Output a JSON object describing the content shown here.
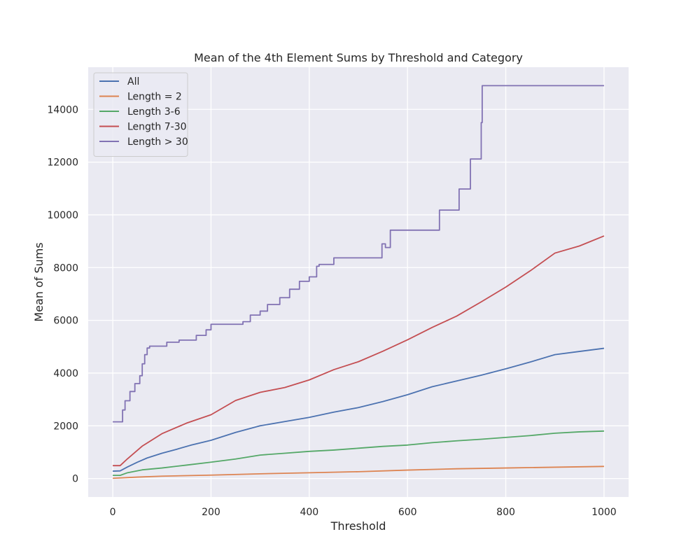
{
  "chart_data": {
    "type": "line",
    "title": "Mean of the 4th Element Sums by Threshold and Category",
    "xlabel": "Threshold",
    "ylabel": "Mean of Sums",
    "xlim": [
      -50,
      1050
    ],
    "ylim": [
      -700,
      15600
    ],
    "xticks": [
      0,
      200,
      400,
      600,
      800,
      1000
    ],
    "yticks": [
      0,
      2000,
      4000,
      6000,
      8000,
      10000,
      12000,
      14000
    ],
    "grid": true,
    "legend_position": "top-left",
    "series": [
      {
        "name": "All",
        "color": "#4c72b0",
        "step": false,
        "points": [
          [
            0,
            280
          ],
          [
            15,
            290
          ],
          [
            30,
            440
          ],
          [
            50,
            620
          ],
          [
            70,
            780
          ],
          [
            100,
            960
          ],
          [
            130,
            1110
          ],
          [
            160,
            1270
          ],
          [
            200,
            1450
          ],
          [
            250,
            1750
          ],
          [
            300,
            2000
          ],
          [
            350,
            2160
          ],
          [
            400,
            2320
          ],
          [
            450,
            2520
          ],
          [
            500,
            2690
          ],
          [
            550,
            2920
          ],
          [
            600,
            3180
          ],
          [
            650,
            3480
          ],
          [
            700,
            3700
          ],
          [
            750,
            3920
          ],
          [
            800,
            4160
          ],
          [
            850,
            4420
          ],
          [
            900,
            4700
          ],
          [
            950,
            4820
          ],
          [
            1000,
            4940
          ]
        ]
      },
      {
        "name": "Length = 2",
        "color": "#dd8452",
        "step": false,
        "points": [
          [
            0,
            10
          ],
          [
            50,
            55
          ],
          [
            100,
            90
          ],
          [
            200,
            130
          ],
          [
            300,
            180
          ],
          [
            400,
            220
          ],
          [
            500,
            260
          ],
          [
            600,
            320
          ],
          [
            700,
            370
          ],
          [
            800,
            400
          ],
          [
            900,
            430
          ],
          [
            1000,
            460
          ]
        ]
      },
      {
        "name": "Length 3-6",
        "color": "#55a868",
        "step": false,
        "points": [
          [
            0,
            120
          ],
          [
            15,
            120
          ],
          [
            30,
            220
          ],
          [
            60,
            330
          ],
          [
            100,
            400
          ],
          [
            150,
            510
          ],
          [
            200,
            620
          ],
          [
            250,
            740
          ],
          [
            300,
            890
          ],
          [
            350,
            960
          ],
          [
            400,
            1030
          ],
          [
            450,
            1080
          ],
          [
            500,
            1150
          ],
          [
            550,
            1220
          ],
          [
            600,
            1270
          ],
          [
            650,
            1360
          ],
          [
            700,
            1430
          ],
          [
            750,
            1490
          ],
          [
            800,
            1560
          ],
          [
            850,
            1630
          ],
          [
            900,
            1720
          ],
          [
            950,
            1770
          ],
          [
            1000,
            1800
          ]
        ]
      },
      {
        "name": "Length 7-30",
        "color": "#c44e52",
        "step": false,
        "points": [
          [
            0,
            490
          ],
          [
            15,
            490
          ],
          [
            30,
            750
          ],
          [
            60,
            1230
          ],
          [
            100,
            1700
          ],
          [
            150,
            2100
          ],
          [
            200,
            2420
          ],
          [
            250,
            2960
          ],
          [
            300,
            3270
          ],
          [
            350,
            3450
          ],
          [
            400,
            3740
          ],
          [
            450,
            4130
          ],
          [
            500,
            4430
          ],
          [
            550,
            4830
          ],
          [
            600,
            5260
          ],
          [
            650,
            5730
          ],
          [
            700,
            6160
          ],
          [
            750,
            6700
          ],
          [
            800,
            7260
          ],
          [
            850,
            7880
          ],
          [
            900,
            8550
          ],
          [
            950,
            8820
          ],
          [
            1000,
            9200
          ]
        ]
      },
      {
        "name": "Length > 30",
        "color": "#8172b3",
        "step": true,
        "points": [
          [
            0,
            2150
          ],
          [
            15,
            2150
          ],
          [
            20,
            2600
          ],
          [
            25,
            2950
          ],
          [
            35,
            3300
          ],
          [
            45,
            3600
          ],
          [
            55,
            3900
          ],
          [
            60,
            4350
          ],
          [
            65,
            4700
          ],
          [
            70,
            4950
          ],
          [
            75,
            5020
          ],
          [
            110,
            5170
          ],
          [
            135,
            5250
          ],
          [
            170,
            5430
          ],
          [
            190,
            5640
          ],
          [
            200,
            5850
          ],
          [
            265,
            5950
          ],
          [
            280,
            6200
          ],
          [
            300,
            6350
          ],
          [
            315,
            6600
          ],
          [
            340,
            6860
          ],
          [
            360,
            7180
          ],
          [
            380,
            7480
          ],
          [
            400,
            7650
          ],
          [
            415,
            8050
          ],
          [
            420,
            8120
          ],
          [
            450,
            8370
          ],
          [
            548,
            8900
          ],
          [
            555,
            8760
          ],
          [
            565,
            9420
          ],
          [
            665,
            10180
          ],
          [
            705,
            10980
          ],
          [
            728,
            12120
          ],
          [
            750,
            13500
          ],
          [
            752,
            14900
          ],
          [
            1000,
            14900
          ]
        ]
      }
    ]
  }
}
